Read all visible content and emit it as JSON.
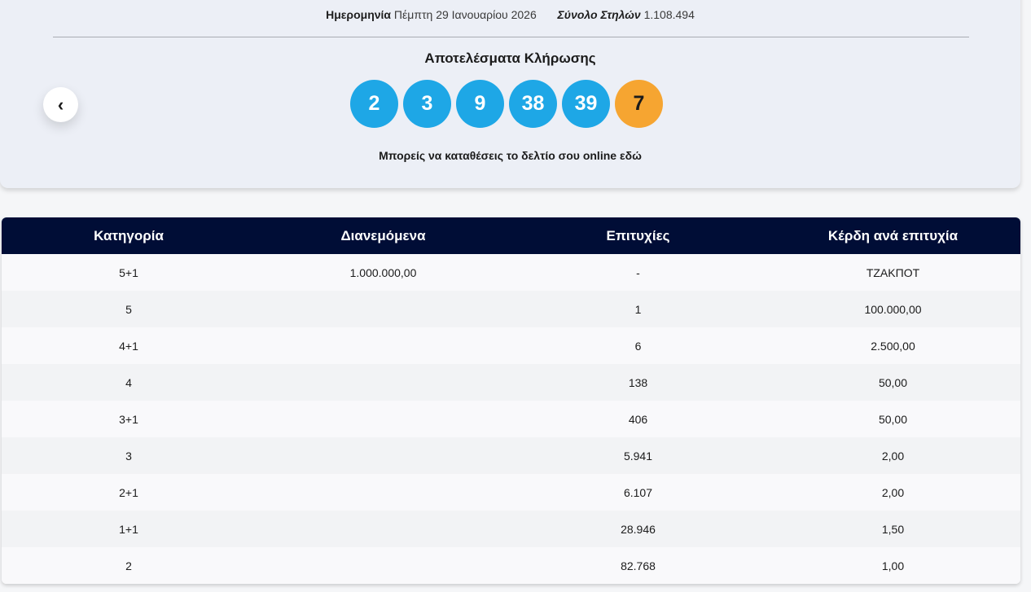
{
  "meta": {
    "date_label": "Ημερομηνία",
    "date_value": "Πέμπτη 29 Ιανουαρίου 2026",
    "total_label": "Σύνολο Στηλών",
    "total_value": "1.108.494"
  },
  "results": {
    "title": "Αποτελέσματα Κλήρωσης",
    "prev_icon": "‹",
    "numbers": [
      "2",
      "3",
      "9",
      "38",
      "39"
    ],
    "bonus": "7",
    "online_text": "Μπορείς να καταθέσεις το δελτίο σου online εδώ",
    "colors": {
      "ball": "#1ea7e6",
      "bonus": "#f6a531",
      "header": "#000d36"
    }
  },
  "table": {
    "headers": [
      "Κατηγορία",
      "Διανεμόμενα",
      "Επιτυχίες",
      "Κέρδη ανά επιτυχία"
    ],
    "rows": [
      [
        "5+1",
        "1.000.000,00",
        "-",
        "ΤΖΑΚΠΟΤ"
      ],
      [
        "5",
        "",
        "1",
        "100.000,00"
      ],
      [
        "4+1",
        "",
        "6",
        "2.500,00"
      ],
      [
        "4",
        "",
        "138",
        "50,00"
      ],
      [
        "3+1",
        "",
        "406",
        "50,00"
      ],
      [
        "3",
        "",
        "5.941",
        "2,00"
      ],
      [
        "2+1",
        "",
        "6.107",
        "2,00"
      ],
      [
        "1+1",
        "",
        "28.946",
        "1,50"
      ],
      [
        "2",
        "",
        "82.768",
        "1,00"
      ]
    ]
  }
}
